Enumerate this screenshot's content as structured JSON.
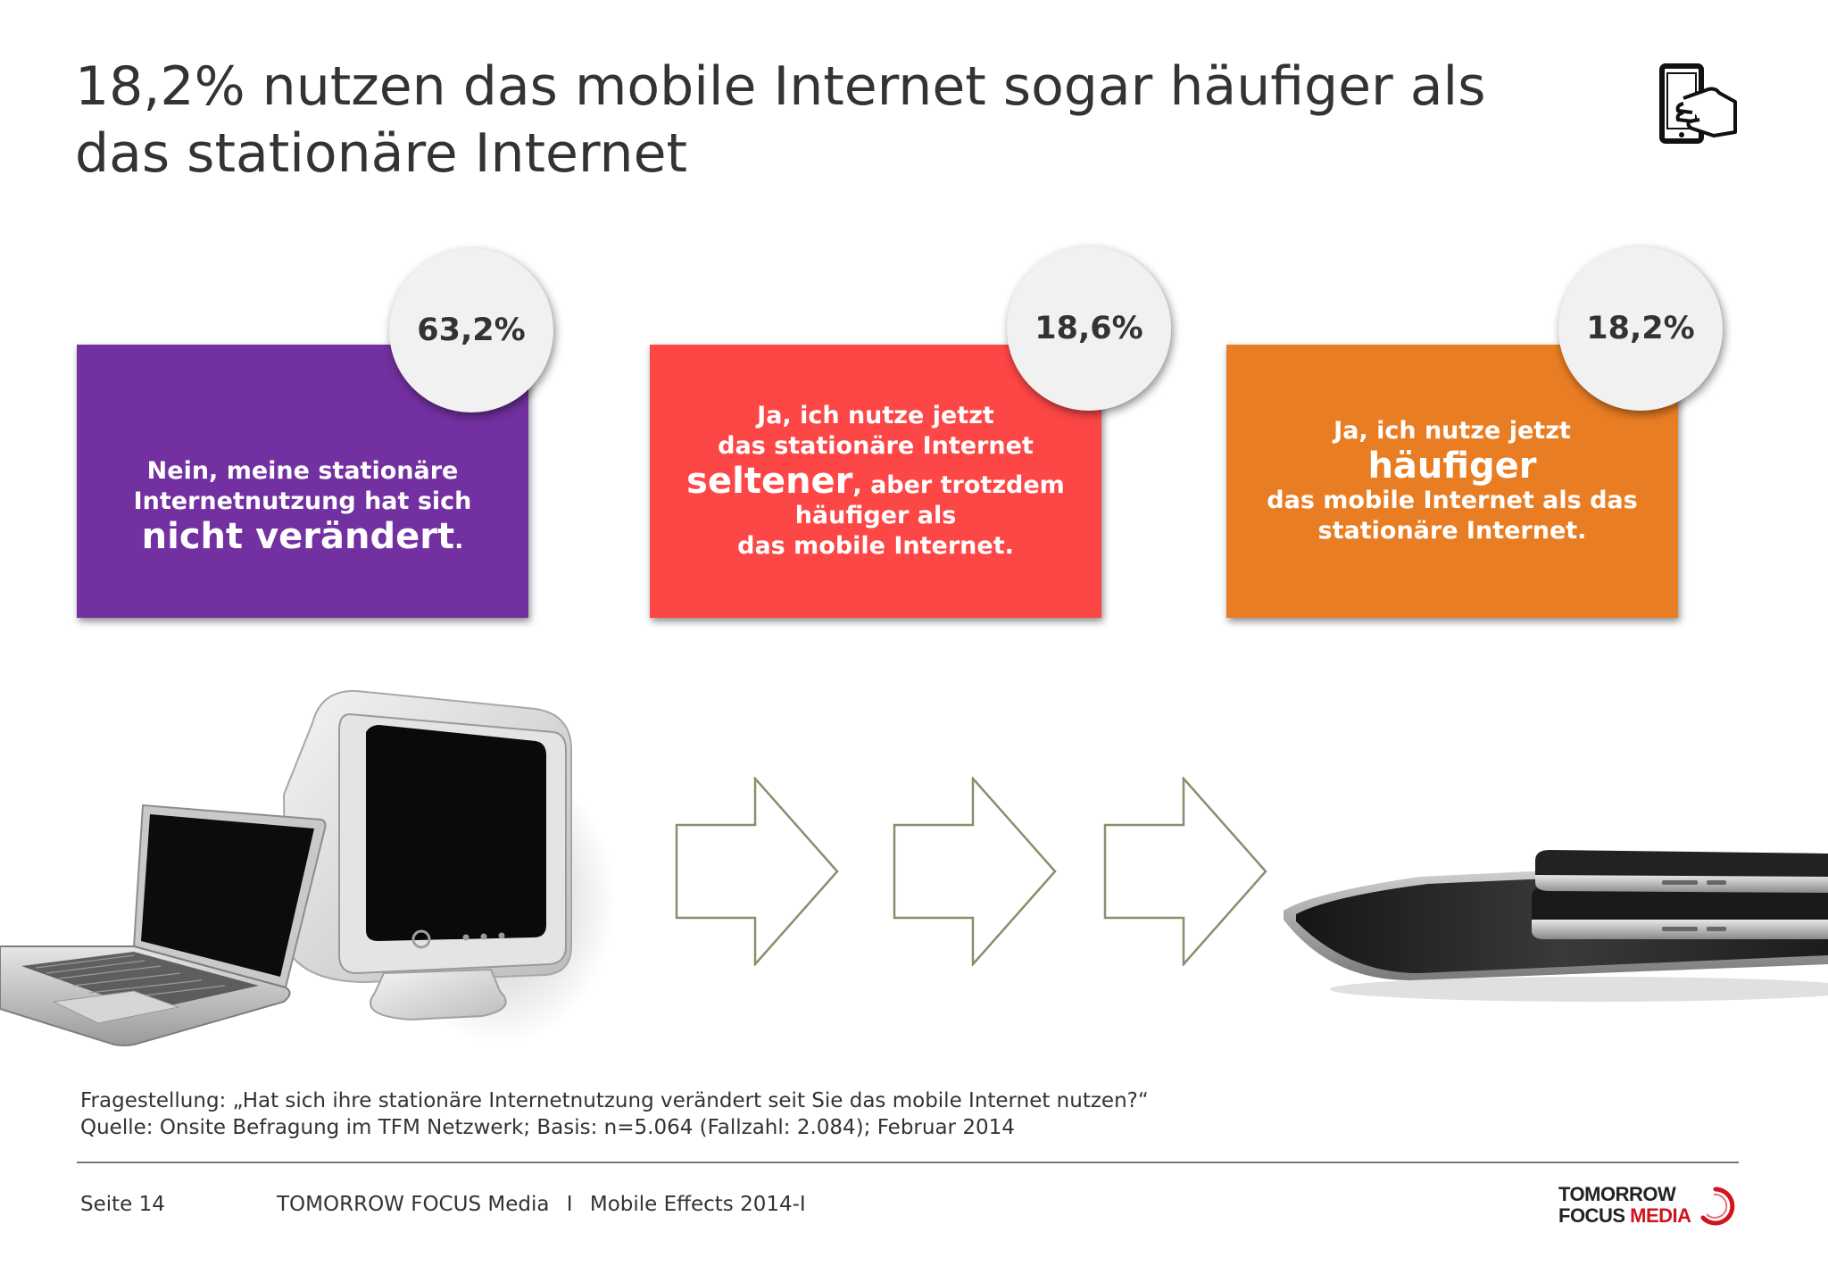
{
  "slide": {
    "title_lines": [
      "18,2% nutzen das mobile Internet sogar häufiger als",
      "das stationäre Internet"
    ]
  },
  "cards": [
    {
      "percent": "63,2%",
      "color": "#7230a0",
      "lines": [
        "Nein, meine stationäre",
        "Internetnutzung hat sich"
      ],
      "emphasis": "nicht verändert",
      "trailing": "."
    },
    {
      "percent": "18,6%",
      "color": "#fd4646",
      "lines": [
        "Ja, ich nutze jetzt",
        "das stationäre Internet"
      ],
      "emphasis": "seltener",
      "emphasis_tail": ", aber trotzdem",
      "after_lines": [
        "häufiger als",
        "das mobile Internet."
      ]
    },
    {
      "percent": "18,2%",
      "color": "#e97d23",
      "lines": [
        "Ja, ich nutze jetzt"
      ],
      "emphasis": "häufiger",
      "after_lines": [
        "das mobile Internet als das",
        "stationäre Internet."
      ]
    }
  ],
  "footnote": {
    "question": "Fragestellung: „Hat sich ihre stationäre Internetnutzung verändert seit Sie das mobile Internet nutzen?“",
    "source": "Quelle: Onsite Befragung im TFM Netzwerk; Basis: n=5.064 (Fallzahl: 2.084); Februar 2014"
  },
  "footer": {
    "page": "Seite 14",
    "publisher": "TOMORROW FOCUS Media",
    "separator": "I",
    "report": "Mobile Effects 2014-I"
  },
  "logo": {
    "line1": "TOMORROW",
    "line2_a": "FOCUS ",
    "line2_b": "MEDIA"
  },
  "icons": {
    "corner": "hand-holding-smartphone-icon",
    "left_illustration": "laptop-and-crt-monitor-icon",
    "right_illustration": "tablet-and-smartphones-icon",
    "arrow": "right-arrow-outline-icon"
  }
}
